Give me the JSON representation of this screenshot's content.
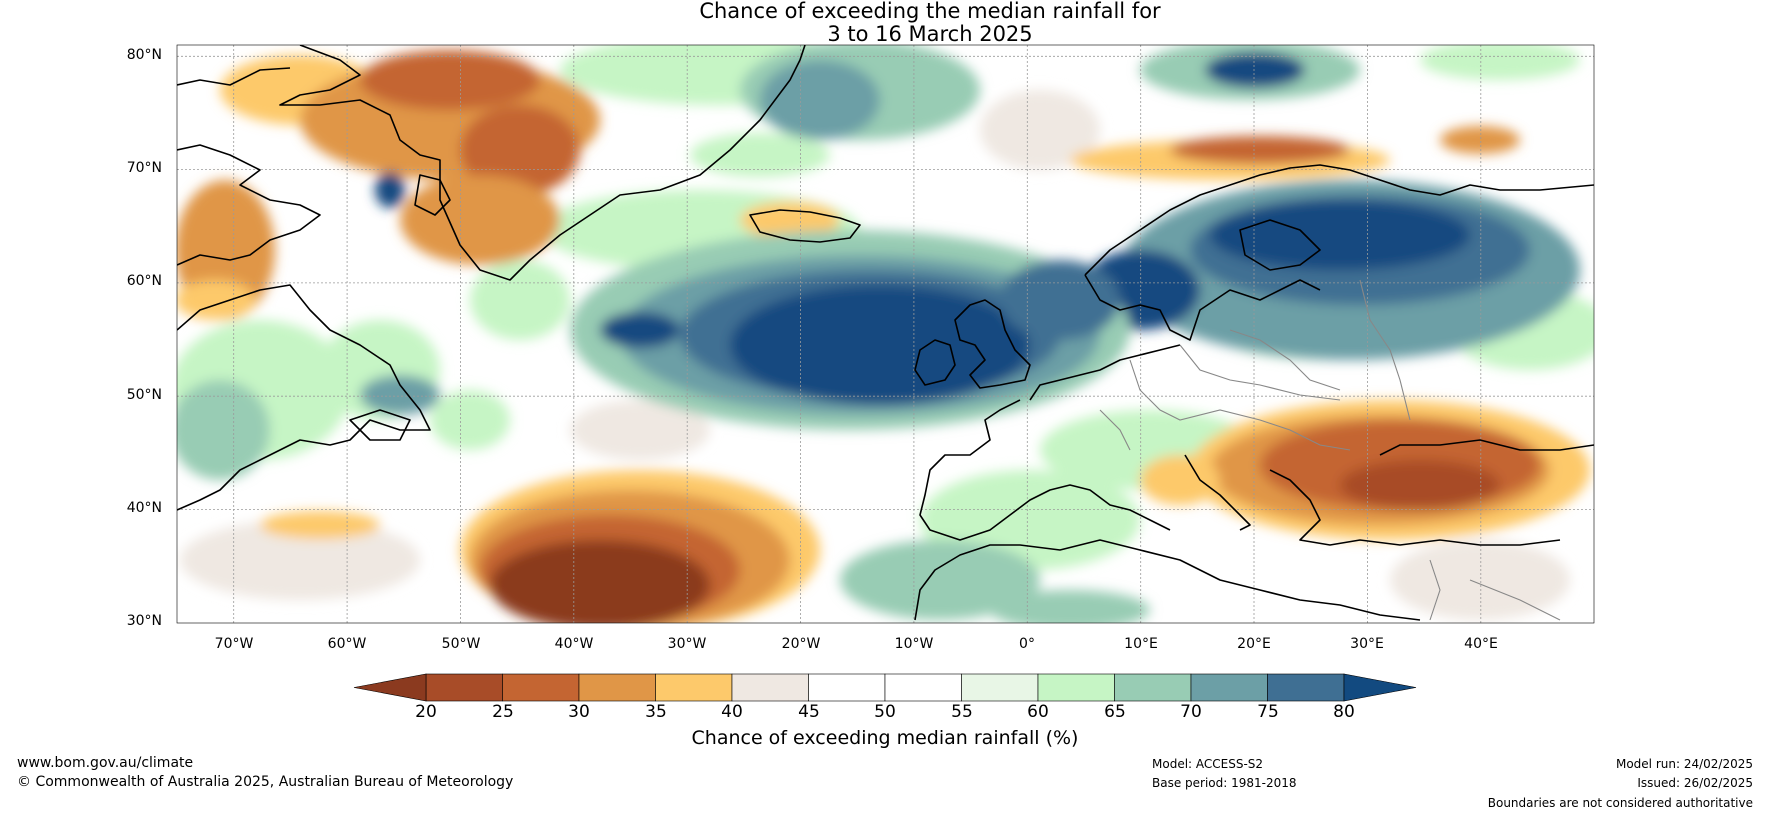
{
  "title": {
    "line1": "Chance of exceeding the median rainfall for",
    "line2": "3 to 16 March 2025"
  },
  "axes": {
    "lat_labels": [
      "80°N",
      "70°N",
      "60°N",
      "50°N",
      "40°N",
      "30°N"
    ],
    "lon_labels": [
      "70°W",
      "60°W",
      "50°W",
      "40°W",
      "30°W",
      "20°W",
      "10°W",
      "0°",
      "10°E",
      "20°E",
      "30°E",
      "40°E"
    ],
    "lat_range": [
      30,
      81
    ],
    "lon_range": [
      -75,
      50
    ],
    "gridlines": true
  },
  "colorbar": {
    "ticks": [
      "20",
      "25",
      "30",
      "35",
      "40",
      "45",
      "50",
      "55",
      "60",
      "65",
      "70",
      "75",
      "80"
    ],
    "label": "Chance of exceeding median rainfall (%)",
    "bands": [
      {
        "range": "<20",
        "color": "#8b3a1f"
      },
      {
        "range": "20-25",
        "color": "#a84c28"
      },
      {
        "range": "25-30",
        "color": "#c46532"
      },
      {
        "range": "30-35",
        "color": "#e09647"
      },
      {
        "range": "35-40",
        "color": "#fdc96b"
      },
      {
        "range": "40-45",
        "color": "#efe8e2"
      },
      {
        "range": "45-50",
        "color": "#ffffff"
      },
      {
        "range": "50-55",
        "color": "#ffffff"
      },
      {
        "range": "55-60",
        "color": "#e8f6e6"
      },
      {
        "range": "60-65",
        "color": "#c6f5c5"
      },
      {
        "range": "65-70",
        "color": "#98ccb4"
      },
      {
        "range": "70-75",
        "color": "#6c9fa6"
      },
      {
        "range": "75-80",
        "color": "#3f6f93"
      },
      {
        "range": ">80",
        "color": "#124a80"
      }
    ]
  },
  "footer": {
    "website": "www.bom.gov.au/climate",
    "copyright": "© Commonwealth of Australia 2025, Australian Bureau of Meteorology",
    "model": "Model: ACCESS-S2",
    "base_period": "Base period: 1981-2018",
    "model_run": "Model run: 24/02/2025",
    "issued": "Issued: 26/02/2025",
    "disclaimer": "Boundaries are not considered authoritative"
  }
}
